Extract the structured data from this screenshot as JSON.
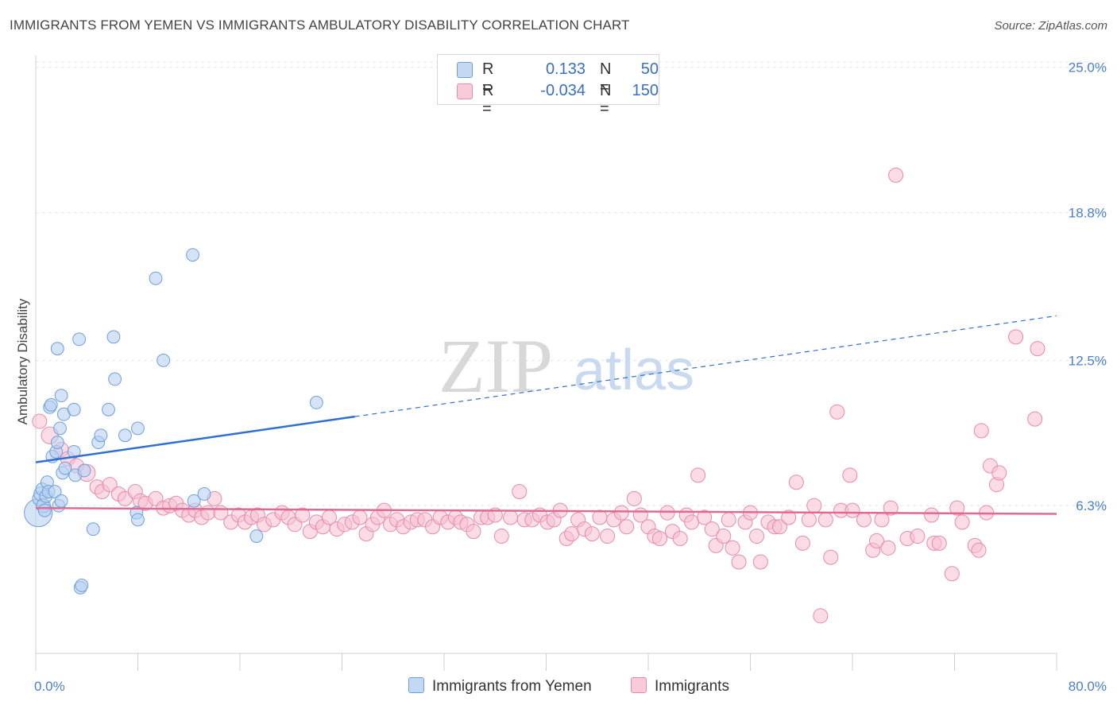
{
  "header": {
    "title": "IMMIGRANTS FROM YEMEN VS IMMIGRANTS AMBULATORY DISABILITY CORRELATION CHART",
    "source": "Source: ZipAtlas.com"
  },
  "legend": {
    "rows": [
      {
        "r_label": "R =",
        "r_value": "0.133",
        "n_label": "N =",
        "n_value": "50"
      },
      {
        "r_label": "R =",
        "r_value": "-0.034",
        "n_label": "N =",
        "n_value": "150"
      }
    ]
  },
  "watermark": {
    "zip": "ZIP",
    "atlas": "atlas"
  },
  "colors": {
    "yemen_fill": "#b8d0f0",
    "yemen_stroke": "#6e9fdc",
    "yemen_line": "#2f6fd0",
    "imm_fill": "#f7bfd2",
    "imm_stroke": "#e88aab",
    "imm_line": "#e06a95",
    "axis_text": "#4a7fd0",
    "grid": "#e6e6e6"
  },
  "chart_data": {
    "type": "scatter",
    "title": "IMMIGRANTS FROM YEMEN VS IMMIGRANTS AMBULATORY DISABILITY CORRELATION CHART",
    "xlabel": "",
    "ylabel": "Ambulatory Disability",
    "xlim": [
      0,
      80
    ],
    "ylim": [
      0,
      25.5
    ],
    "x_tick_labels": {
      "min": "0.0%",
      "max": "80.0%"
    },
    "y_ticks": [
      {
        "value": 6.3,
        "label": "6.3%"
      },
      {
        "value": 12.5,
        "label": "12.5%"
      },
      {
        "value": 18.8,
        "label": "18.8%"
      },
      {
        "value": 25.0,
        "label": "25.0%"
      }
    ],
    "series": [
      {
        "name": "Immigrants from Yemen",
        "trend": {
          "x0": 0,
          "y0": 8.15,
          "x1": 25,
          "y1": 10.1,
          "dash_x1": 80,
          "dash_y1": 14.4
        },
        "points": [
          [
            0.2,
            6.0,
            20
          ],
          [
            0.3,
            6.6,
            10
          ],
          [
            0.4,
            6.8,
            10
          ],
          [
            0.5,
            7.0,
            9
          ],
          [
            0.6,
            6.3,
            10
          ],
          [
            0.7,
            6.1,
            9
          ],
          [
            0.8,
            6.7,
            9
          ],
          [
            0.9,
            7.3,
            9
          ],
          [
            1.0,
            6.9,
            9
          ],
          [
            1.1,
            10.5,
            9
          ],
          [
            1.2,
            10.6,
            9
          ],
          [
            1.3,
            8.4,
            9
          ],
          [
            1.5,
            6.9,
            9
          ],
          [
            1.6,
            8.6,
            9
          ],
          [
            1.7,
            9.0,
            9
          ],
          [
            1.7,
            13.0,
            9
          ],
          [
            1.8,
            6.3,
            9
          ],
          [
            1.9,
            9.6,
            9
          ],
          [
            2.0,
            11.0,
            9
          ],
          [
            2.0,
            6.5,
            9
          ],
          [
            2.1,
            7.7,
            9
          ],
          [
            2.2,
            10.2,
            9
          ],
          [
            2.3,
            7.9,
            9
          ],
          [
            3.0,
            8.6,
            9
          ],
          [
            3.0,
            10.4,
            9
          ],
          [
            3.1,
            7.6,
            9
          ],
          [
            3.4,
            13.4,
            9
          ],
          [
            3.5,
            2.8,
            9
          ],
          [
            3.6,
            2.9,
            9
          ],
          [
            3.8,
            7.8,
            9
          ],
          [
            4.5,
            5.3,
            9
          ],
          [
            4.9,
            9.0,
            9
          ],
          [
            5.1,
            9.3,
            9
          ],
          [
            5.7,
            10.4,
            9
          ],
          [
            6.1,
            13.5,
            9
          ],
          [
            6.2,
            11.7,
            9
          ],
          [
            7.0,
            9.3,
            9
          ],
          [
            7.9,
            6.0,
            9
          ],
          [
            8.0,
            5.7,
            9
          ],
          [
            8.0,
            9.6,
            9
          ],
          [
            9.4,
            16.0,
            9
          ],
          [
            10.0,
            12.5,
            9
          ],
          [
            12.3,
            17.0,
            9
          ],
          [
            12.4,
            6.5,
            9
          ],
          [
            13.2,
            6.8,
            9
          ],
          [
            17.3,
            5.0,
            9
          ],
          [
            22.0,
            10.7,
            9
          ]
        ]
      },
      {
        "name": "Immigrants",
        "trend": {
          "x0": 0,
          "y0": 6.2,
          "x1": 80,
          "y1": 5.95
        },
        "points": [
          [
            0.3,
            9.9,
            11
          ],
          [
            1.1,
            9.3,
            13
          ],
          [
            2.0,
            8.7,
            11
          ],
          [
            2.5,
            8.3,
            11
          ],
          [
            3.2,
            8.0,
            11
          ],
          [
            4.0,
            7.7,
            13
          ],
          [
            4.8,
            7.1,
            11
          ],
          [
            5.2,
            6.9,
            11
          ],
          [
            5.8,
            7.2,
            11
          ],
          [
            6.5,
            6.8,
            11
          ],
          [
            7.0,
            6.6,
            11
          ],
          [
            7.8,
            6.9,
            11
          ],
          [
            8.2,
            6.5,
            11
          ],
          [
            8.6,
            6.4,
            11
          ],
          [
            9.4,
            6.6,
            11
          ],
          [
            10.0,
            6.2,
            11
          ],
          [
            10.5,
            6.3,
            11
          ],
          [
            11.0,
            6.4,
            11
          ],
          [
            11.5,
            6.1,
            11
          ],
          [
            12.0,
            5.9,
            11
          ],
          [
            12.5,
            6.1,
            11
          ],
          [
            13.0,
            5.8,
            11
          ],
          [
            13.5,
            6.0,
            11
          ],
          [
            14.0,
            6.6,
            11
          ],
          [
            14.5,
            6.0,
            11
          ],
          [
            15.3,
            5.6,
            11
          ],
          [
            15.9,
            5.9,
            11
          ],
          [
            16.4,
            5.6,
            11
          ],
          [
            16.9,
            5.8,
            11
          ],
          [
            17.4,
            5.9,
            11
          ],
          [
            17.9,
            5.5,
            11
          ],
          [
            18.6,
            5.7,
            11
          ],
          [
            19.3,
            6.0,
            11
          ],
          [
            19.8,
            5.8,
            11
          ],
          [
            20.3,
            5.5,
            11
          ],
          [
            20.9,
            5.9,
            11
          ],
          [
            21.5,
            5.2,
            11
          ],
          [
            22.0,
            5.6,
            11
          ],
          [
            22.5,
            5.4,
            11
          ],
          [
            23.0,
            5.8,
            11
          ],
          [
            23.6,
            5.3,
            11
          ],
          [
            24.2,
            5.5,
            11
          ],
          [
            24.8,
            5.6,
            11
          ],
          [
            25.4,
            5.8,
            11
          ],
          [
            25.9,
            5.1,
            11
          ],
          [
            26.4,
            5.5,
            11
          ],
          [
            26.8,
            5.8,
            11
          ],
          [
            27.3,
            6.1,
            11
          ],
          [
            27.8,
            5.5,
            11
          ],
          [
            28.3,
            5.7,
            11
          ],
          [
            28.8,
            5.4,
            11
          ],
          [
            29.4,
            5.6,
            11
          ],
          [
            29.9,
            5.7,
            11
          ],
          [
            30.5,
            5.7,
            11
          ],
          [
            31.1,
            5.4,
            11
          ],
          [
            31.7,
            5.8,
            11
          ],
          [
            32.3,
            5.6,
            11
          ],
          [
            32.9,
            5.8,
            11
          ],
          [
            33.3,
            5.6,
            11
          ],
          [
            33.8,
            5.5,
            11
          ],
          [
            34.3,
            5.2,
            11
          ],
          [
            34.9,
            5.8,
            11
          ],
          [
            35.4,
            5.8,
            11
          ],
          [
            36.0,
            5.9,
            11
          ],
          [
            36.5,
            5.0,
            11
          ],
          [
            37.2,
            5.8,
            11
          ],
          [
            37.9,
            6.9,
            11
          ],
          [
            38.3,
            5.7,
            11
          ],
          [
            38.9,
            5.7,
            11
          ],
          [
            39.5,
            5.9,
            11
          ],
          [
            40.1,
            5.6,
            11
          ],
          [
            40.6,
            5.7,
            11
          ],
          [
            41.1,
            6.1,
            11
          ],
          [
            41.6,
            4.9,
            11
          ],
          [
            42.0,
            5.1,
            11
          ],
          [
            42.5,
            5.7,
            11
          ],
          [
            43.0,
            5.3,
            11
          ],
          [
            43.6,
            5.1,
            11
          ],
          [
            44.2,
            5.8,
            11
          ],
          [
            44.8,
            5.0,
            11
          ],
          [
            45.3,
            5.7,
            11
          ],
          [
            45.9,
            6.0,
            11
          ],
          [
            46.3,
            5.4,
            11
          ],
          [
            46.9,
            6.6,
            11
          ],
          [
            47.4,
            5.9,
            11
          ],
          [
            48.0,
            5.4,
            11
          ],
          [
            48.5,
            5.0,
            11
          ],
          [
            48.9,
            4.9,
            11
          ],
          [
            49.5,
            6.0,
            11
          ],
          [
            49.9,
            5.2,
            11
          ],
          [
            50.5,
            4.9,
            11
          ],
          [
            51.0,
            5.9,
            11
          ],
          [
            51.4,
            5.6,
            11
          ],
          [
            51.9,
            7.6,
            11
          ],
          [
            52.4,
            5.8,
            11
          ],
          [
            53.0,
            5.3,
            11
          ],
          [
            53.3,
            4.6,
            11
          ],
          [
            53.9,
            5.0,
            11
          ],
          [
            54.3,
            5.7,
            11
          ],
          [
            54.6,
            4.5,
            11
          ],
          [
            55.1,
            3.9,
            11
          ],
          [
            55.6,
            5.6,
            11
          ],
          [
            56.0,
            6.0,
            11
          ],
          [
            56.5,
            5.0,
            11
          ],
          [
            56.8,
            3.9,
            11
          ],
          [
            57.4,
            5.6,
            11
          ],
          [
            57.9,
            5.4,
            11
          ],
          [
            58.3,
            5.4,
            11
          ],
          [
            59.0,
            5.8,
            11
          ],
          [
            59.6,
            7.3,
            11
          ],
          [
            60.1,
            4.7,
            11
          ],
          [
            60.6,
            5.7,
            11
          ],
          [
            61.0,
            6.3,
            11
          ],
          [
            61.5,
            1.6,
            11
          ],
          [
            61.9,
            5.7,
            11
          ],
          [
            62.3,
            4.1,
            11
          ],
          [
            62.8,
            10.3,
            11
          ],
          [
            63.1,
            6.1,
            11
          ],
          [
            63.8,
            7.6,
            11
          ],
          [
            64.0,
            6.1,
            11
          ],
          [
            64.9,
            5.7,
            11
          ],
          [
            65.6,
            4.4,
            11
          ],
          [
            65.9,
            4.8,
            11
          ],
          [
            66.3,
            5.7,
            11
          ],
          [
            66.8,
            4.5,
            11
          ],
          [
            67.0,
            6.2,
            11
          ],
          [
            68.3,
            4.9,
            11
          ],
          [
            69.1,
            5.0,
            11
          ],
          [
            67.4,
            20.4,
            11
          ],
          [
            70.2,
            5.9,
            11
          ],
          [
            70.4,
            4.7,
            11
          ],
          [
            70.8,
            4.7,
            11
          ],
          [
            71.8,
            3.4,
            11
          ],
          [
            72.2,
            6.2,
            11
          ],
          [
            72.6,
            5.6,
            11
          ],
          [
            73.6,
            4.6,
            11
          ],
          [
            73.9,
            4.4,
            11
          ],
          [
            74.1,
            9.5,
            11
          ],
          [
            74.5,
            6.0,
            11
          ],
          [
            74.8,
            8.0,
            11
          ],
          [
            75.3,
            7.2,
            11
          ],
          [
            75.5,
            7.7,
            11
          ],
          [
            76.8,
            13.5,
            11
          ],
          [
            78.3,
            10.0,
            11
          ],
          [
            78.5,
            13.0,
            11
          ]
        ]
      }
    ]
  },
  "bottom_legend": {
    "yemen_label": "Immigrants from Yemen",
    "imm_label": "Immigrants"
  }
}
